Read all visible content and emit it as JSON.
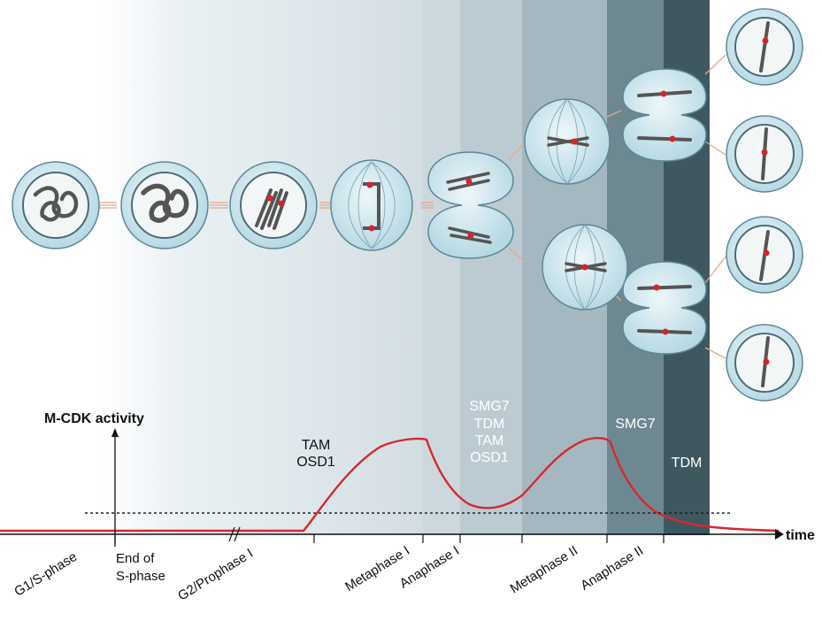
{
  "axis": {
    "y_label": "M-CDK activity",
    "x_label": "time"
  },
  "stages": [
    {
      "label": "G1/S-phase"
    },
    {
      "label": "End of"
    },
    {
      "label": "S-phase"
    },
    {
      "label": "G2/Prophase I"
    },
    {
      "label": "Metaphase I"
    },
    {
      "label": "Anaphase I"
    },
    {
      "label": "Metaphase II"
    },
    {
      "label": "Anaphase II"
    }
  ],
  "regulators": {
    "group1": [
      "TAM",
      "OSD1"
    ],
    "group2": [
      "SMG7",
      "TDM",
      "TAM",
      "OSD1"
    ],
    "group3": [
      "SMG7"
    ],
    "group4": [
      "TDM"
    ]
  },
  "colors": {
    "curve": "#d7282f",
    "cell_fill": "#bfe0ea",
    "cell_stroke": "#5d8796",
    "centromere": "#d8232a",
    "band_1": "#cdd8de",
    "band_2": "#b4c5cd",
    "band_3": "#93aab4",
    "band_4": "#6e8892",
    "band_5": "#3f5860"
  }
}
